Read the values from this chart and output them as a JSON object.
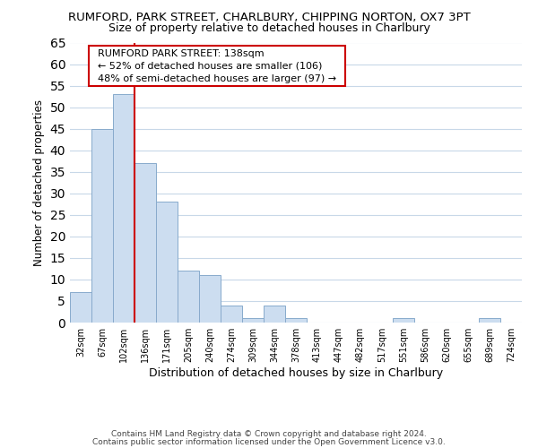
{
  "title": "RUMFORD, PARK STREET, CHARLBURY, CHIPPING NORTON, OX7 3PT",
  "subtitle": "Size of property relative to detached houses in Charlbury",
  "xlabel": "Distribution of detached houses by size in Charlbury",
  "ylabel": "Number of detached properties",
  "bar_color": "#ccddf0",
  "bar_edge_color": "#88aacc",
  "grid_color": "#c8d8e8",
  "bin_labels": [
    "32sqm",
    "67sqm",
    "102sqm",
    "136sqm",
    "171sqm",
    "205sqm",
    "240sqm",
    "274sqm",
    "309sqm",
    "344sqm",
    "378sqm",
    "413sqm",
    "447sqm",
    "482sqm",
    "517sqm",
    "551sqm",
    "586sqm",
    "620sqm",
    "655sqm",
    "689sqm",
    "724sqm"
  ],
  "bar_heights": [
    7,
    45,
    53,
    37,
    28,
    12,
    11,
    4,
    1,
    4,
    1,
    0,
    0,
    0,
    0,
    1,
    0,
    0,
    0,
    1,
    0
  ],
  "ylim": [
    0,
    65
  ],
  "yticks": [
    0,
    5,
    10,
    15,
    20,
    25,
    30,
    35,
    40,
    45,
    50,
    55,
    60,
    65
  ],
  "property_line_color": "#cc0000",
  "annotation_title": "RUMFORD PARK STREET: 138sqm",
  "annotation_line1": "← 52% of detached houses are smaller (106)",
  "annotation_line2": "48% of semi-detached houses are larger (97) →",
  "annotation_box_color": "#ffffff",
  "annotation_box_edge": "#cc0000",
  "footer1": "Contains HM Land Registry data © Crown copyright and database right 2024.",
  "footer2": "Contains public sector information licensed under the Open Government Licence v3.0."
}
